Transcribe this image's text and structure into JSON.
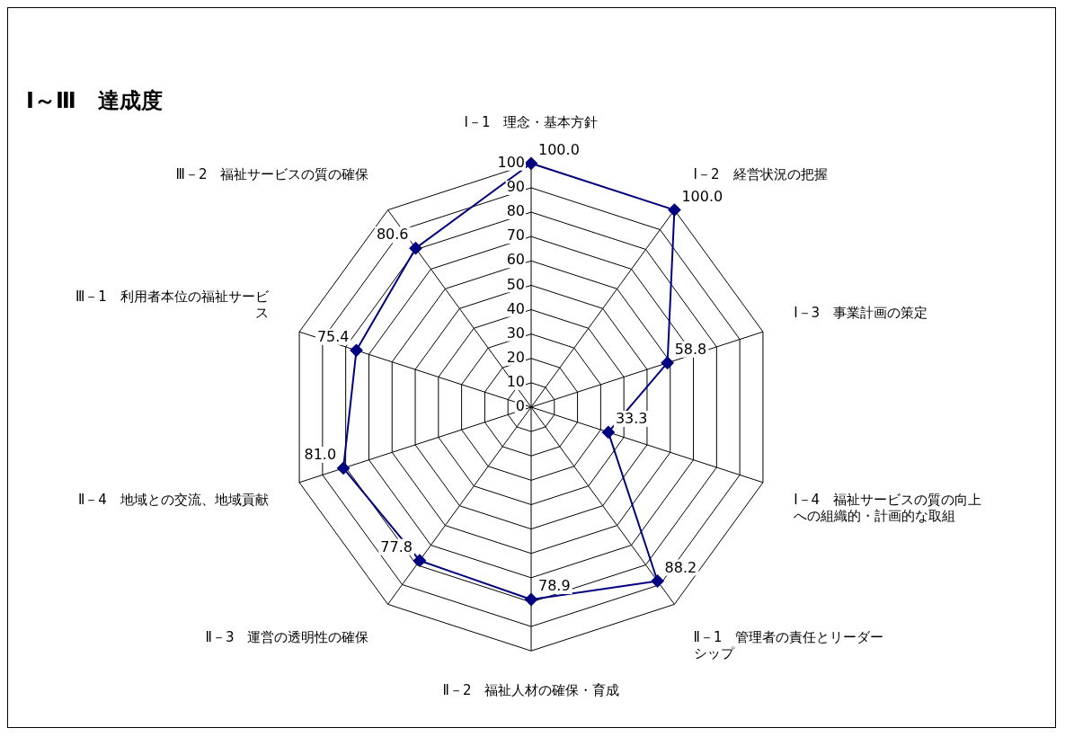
{
  "chart_data": {
    "type": "radar",
    "title": "Ⅰ～Ⅲ　達成度",
    "categories": [
      "Ⅰ－1　理念・基本方針",
      "Ⅰ－2　経営状況の把握",
      "Ⅰ－3　事業計画の策定",
      "Ⅰ－4　福祉サービスの質の向上への組織的・計画的な取組",
      "Ⅱ－1　管理者の責任とリーダーシップ",
      "Ⅱ－2　福祉人材の確保・育成",
      "Ⅱ－3　運営の透明性の確保",
      "Ⅱ－4　地域との交流、地域貢献",
      "Ⅲ－1　利用者本位の福祉サービス",
      "Ⅲ－2　福祉サービスの質の確保"
    ],
    "series": [
      {
        "color": "#000080",
        "values": [
          100.0,
          100.0,
          58.8,
          33.3,
          88.2,
          78.9,
          77.8,
          81.0,
          75.4,
          80.6
        ],
        "value_labels": [
          "100.0",
          "100.0",
          "58.8",
          "33.3",
          "88.2",
          "78.9",
          "77.8",
          "81.0",
          "75.4",
          "80.6"
        ]
      }
    ],
    "ylim": [
      0,
      100
    ],
    "yticks": [
      0,
      10,
      20,
      30,
      40,
      50,
      60,
      70,
      80,
      90,
      100
    ],
    "grid": true,
    "legend": false,
    "marker": "diamond",
    "line_style": "solid"
  }
}
